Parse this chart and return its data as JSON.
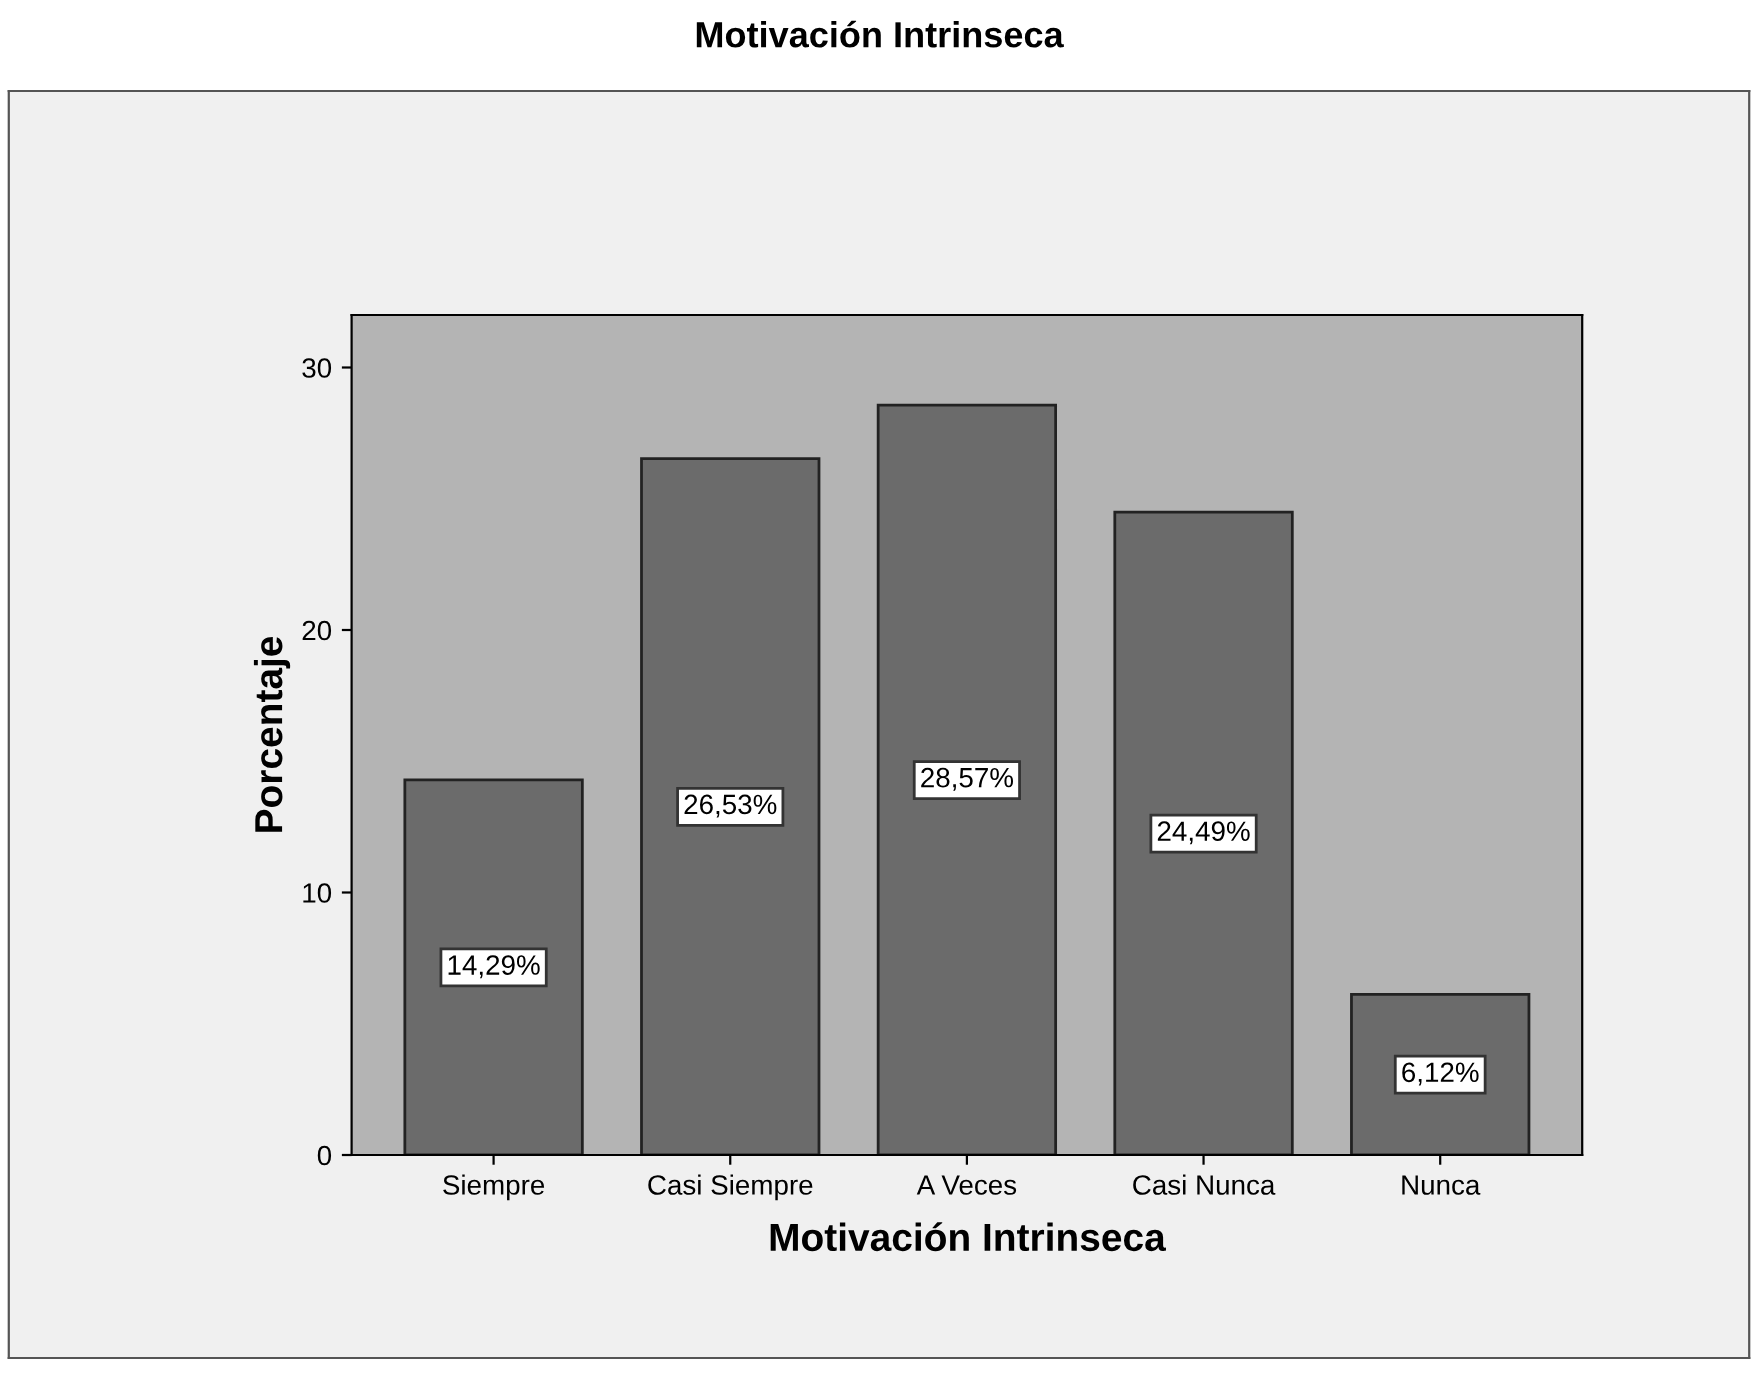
{
  "chart_data": {
    "type": "bar",
    "title": "Motivación Intrinseca",
    "xlabel": "Motivación Intrinseca",
    "ylabel": "Porcentaje",
    "categories": [
      "Siempre",
      "Casi Siempre",
      "A Veces",
      "Casi Nunca",
      "Nunca"
    ],
    "values": [
      14.29,
      26.53,
      28.57,
      24.49,
      6.12
    ],
    "value_labels": [
      "14,29%",
      "26,53%",
      "28,57%",
      "24,49%",
      "6,12%"
    ],
    "color": "#6b6b6b",
    "ylim": [
      0,
      32
    ],
    "yticks": [
      0,
      10,
      20,
      30
    ],
    "grid": false,
    "legend": false
  }
}
